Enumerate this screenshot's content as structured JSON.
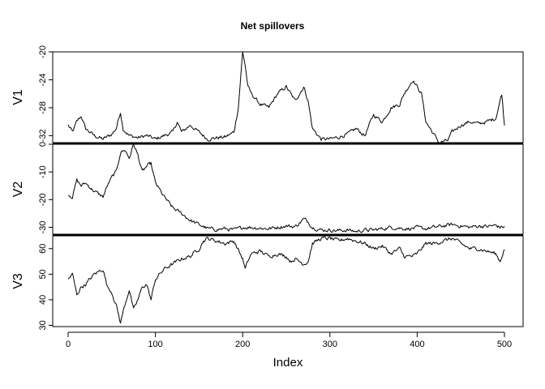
{
  "chart_data": {
    "type": "line",
    "title": "Net spillovers",
    "xlabel": "Index",
    "xlim": [
      0,
      500
    ],
    "x_ticks": [
      "0",
      "100",
      "200",
      "300",
      "400",
      "500"
    ],
    "grid": false,
    "n_points": 501,
    "panels": [
      {
        "name": "V1",
        "ylim": [
          -33,
          -20
        ],
        "y_ticks": [
          -20,
          -24,
          -28,
          -32
        ],
        "y_tick_labels": [
          "-20",
          "-24",
          "-28",
          "-32"
        ],
        "keypoints": [
          [
            0,
            -30.5
          ],
          [
            5,
            -31.5
          ],
          [
            10,
            -30
          ],
          [
            15,
            -29.2
          ],
          [
            20,
            -31
          ],
          [
            30,
            -32
          ],
          [
            40,
            -32.5
          ],
          [
            50,
            -31.8
          ],
          [
            55,
            -31
          ],
          [
            60,
            -28.6
          ],
          [
            63,
            -31
          ],
          [
            70,
            -32
          ],
          [
            80,
            -32.3
          ],
          [
            90,
            -32
          ],
          [
            100,
            -32.5
          ],
          [
            110,
            -32
          ],
          [
            120,
            -31.5
          ],
          [
            125,
            -30
          ],
          [
            130,
            -31.5
          ],
          [
            140,
            -30.5
          ],
          [
            150,
            -31.5
          ],
          [
            160,
            -32.5
          ],
          [
            170,
            -32.3
          ],
          [
            180,
            -32.2
          ],
          [
            190,
            -31.5
          ],
          [
            195,
            -28
          ],
          [
            200,
            -20
          ],
          [
            203,
            -22
          ],
          [
            206,
            -25
          ],
          [
            210,
            -26
          ],
          [
            220,
            -27.5
          ],
          [
            230,
            -28
          ],
          [
            240,
            -26
          ],
          [
            250,
            -25
          ],
          [
            255,
            -26
          ],
          [
            260,
            -27
          ],
          [
            270,
            -25
          ],
          [
            275,
            -27
          ],
          [
            280,
            -31
          ],
          [
            290,
            -32.5
          ],
          [
            300,
            -32.5
          ],
          [
            310,
            -32.2
          ],
          [
            320,
            -31.8
          ],
          [
            330,
            -31
          ],
          [
            340,
            -32
          ],
          [
            350,
            -29
          ],
          [
            360,
            -30
          ],
          [
            370,
            -28
          ],
          [
            380,
            -27.5
          ],
          [
            385,
            -26
          ],
          [
            395,
            -24
          ],
          [
            400,
            -25
          ],
          [
            405,
            -26
          ],
          [
            410,
            -30
          ],
          [
            420,
            -32
          ],
          [
            425,
            -33
          ],
          [
            435,
            -32.7
          ],
          [
            440,
            -31.5
          ],
          [
            450,
            -30.5
          ],
          [
            460,
            -30
          ],
          [
            470,
            -30.3
          ],
          [
            480,
            -30
          ],
          [
            490,
            -29.5
          ],
          [
            495,
            -27
          ],
          [
            497,
            -26
          ],
          [
            500,
            -30.5
          ]
        ]
      },
      {
        "name": "V2",
        "ylim": [
          -32.5,
          0
        ],
        "y_ticks": [
          0,
          -10,
          -20,
          -30
        ],
        "y_tick_labels": [
          "0",
          "-10",
          "-20",
          "-30"
        ],
        "keypoints": [
          [
            0,
            -18
          ],
          [
            5,
            -19
          ],
          [
            10,
            -13
          ],
          [
            15,
            -15
          ],
          [
            20,
            -14
          ],
          [
            30,
            -17
          ],
          [
            40,
            -19
          ],
          [
            45,
            -15
          ],
          [
            50,
            -12
          ],
          [
            55,
            -10
          ],
          [
            60,
            -3
          ],
          [
            65,
            -2
          ],
          [
            70,
            -5
          ],
          [
            75,
            0
          ],
          [
            80,
            -4
          ],
          [
            85,
            -10
          ],
          [
            90,
            -8
          ],
          [
            95,
            -7
          ],
          [
            100,
            -14
          ],
          [
            110,
            -19
          ],
          [
            120,
            -23
          ],
          [
            130,
            -25
          ],
          [
            140,
            -27.5
          ],
          [
            150,
            -29
          ],
          [
            160,
            -30.5
          ],
          [
            170,
            -30.8
          ],
          [
            180,
            -30.5
          ],
          [
            190,
            -31
          ],
          [
            200,
            -30
          ],
          [
            210,
            -30
          ],
          [
            220,
            -30.3
          ],
          [
            230,
            -30.5
          ],
          [
            240,
            -30
          ],
          [
            250,
            -29.5
          ],
          [
            260,
            -29.8
          ],
          [
            265,
            -28.5
          ],
          [
            270,
            -27
          ],
          [
            275,
            -28
          ],
          [
            280,
            -30
          ],
          [
            290,
            -31
          ],
          [
            300,
            -31
          ],
          [
            310,
            -31.2
          ],
          [
            320,
            -31
          ],
          [
            330,
            -31.5
          ],
          [
            340,
            -31
          ],
          [
            350,
            -31
          ],
          [
            360,
            -30.5
          ],
          [
            370,
            -30
          ],
          [
            380,
            -30.3
          ],
          [
            390,
            -30.5
          ],
          [
            400,
            -30.2
          ],
          [
            410,
            -30.5
          ],
          [
            420,
            -30
          ],
          [
            430,
            -29.5
          ],
          [
            440,
            -29
          ],
          [
            450,
            -29.5
          ],
          [
            460,
            -30
          ],
          [
            470,
            -29.5
          ],
          [
            480,
            -29.7
          ],
          [
            490,
            -29.3
          ],
          [
            495,
            -30
          ],
          [
            500,
            -29.8
          ]
        ]
      },
      {
        "name": "V3",
        "ylim": [
          29.5,
          65
        ],
        "y_ticks": [
          30,
          40,
          50,
          60
        ],
        "y_tick_labels": [
          "30",
          "40",
          "50",
          "60"
        ],
        "keypoints": [
          [
            0,
            48
          ],
          [
            5,
            50
          ],
          [
            10,
            42
          ],
          [
            15,
            45
          ],
          [
            20,
            46
          ],
          [
            30,
            50
          ],
          [
            35,
            51
          ],
          [
            40,
            52
          ],
          [
            45,
            45
          ],
          [
            50,
            43
          ],
          [
            55,
            38
          ],
          [
            60,
            31
          ],
          [
            65,
            38
          ],
          [
            70,
            44
          ],
          [
            75,
            36
          ],
          [
            80,
            40
          ],
          [
            85,
            45
          ],
          [
            90,
            46
          ],
          [
            95,
            40
          ],
          [
            100,
            48
          ],
          [
            110,
            52
          ],
          [
            120,
            54
          ],
          [
            130,
            56
          ],
          [
            140,
            57
          ],
          [
            150,
            60
          ],
          [
            155,
            63
          ],
          [
            160,
            64
          ],
          [
            170,
            63
          ],
          [
            180,
            62
          ],
          [
            190,
            63
          ],
          [
            200,
            56
          ],
          [
            203,
            52
          ],
          [
            206,
            55
          ],
          [
            210,
            58
          ],
          [
            220,
            59
          ],
          [
            230,
            57
          ],
          [
            240,
            58
          ],
          [
            250,
            57
          ],
          [
            255,
            55
          ],
          [
            260,
            56
          ],
          [
            270,
            54
          ],
          [
            275,
            55
          ],
          [
            280,
            62
          ],
          [
            290,
            64
          ],
          [
            300,
            64
          ],
          [
            310,
            63
          ],
          [
            320,
            64
          ],
          [
            330,
            63
          ],
          [
            340,
            62
          ],
          [
            350,
            60
          ],
          [
            360,
            61
          ],
          [
            370,
            58
          ],
          [
            380,
            60
          ],
          [
            385,
            57
          ],
          [
            395,
            57
          ],
          [
            400,
            58
          ],
          [
            405,
            60
          ],
          [
            410,
            62
          ],
          [
            420,
            62
          ],
          [
            430,
            63
          ],
          [
            440,
            64
          ],
          [
            450,
            62
          ],
          [
            460,
            60
          ],
          [
            470,
            60
          ],
          [
            480,
            59
          ],
          [
            490,
            58
          ],
          [
            495,
            55
          ],
          [
            497,
            57
          ],
          [
            500,
            60
          ]
        ]
      }
    ]
  }
}
